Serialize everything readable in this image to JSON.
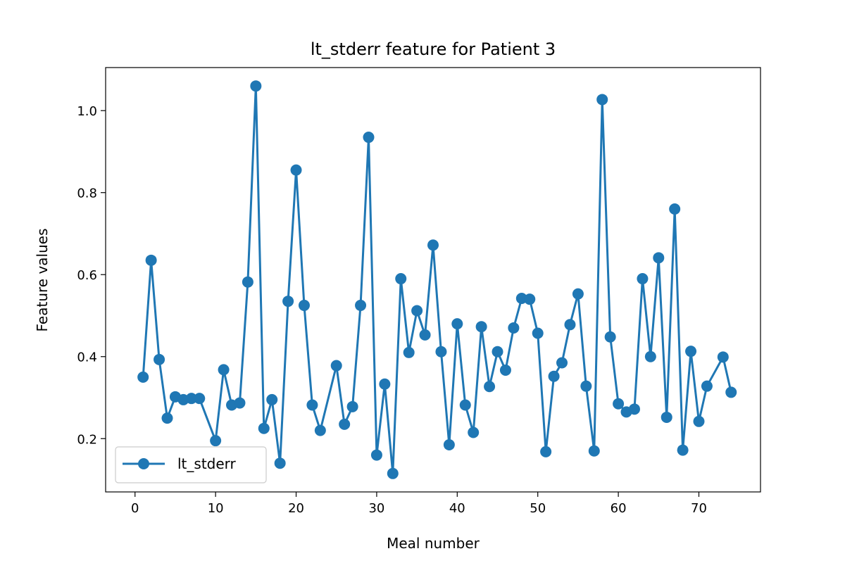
{
  "chart_data": {
    "type": "line",
    "title": "lt_stderr feature for Patient 3",
    "xlabel": "Meal number",
    "ylabel": "Feature values",
    "xlim": [
      -3.65,
      77.65
    ],
    "ylim": [
      0.07,
      1.105
    ],
    "xticks": [
      0,
      10,
      20,
      30,
      40,
      50,
      60,
      70
    ],
    "yticks": [
      0.2,
      0.4,
      0.6,
      0.8,
      1.0
    ],
    "xtick_labels": [
      "0",
      "10",
      "20",
      "30",
      "40",
      "50",
      "60",
      "70"
    ],
    "ytick_labels": [
      "0.2",
      "0.4",
      "0.6",
      "0.8",
      "1.0"
    ],
    "grid": false,
    "legend_position": "lower-left",
    "series": [
      {
        "name": "lt_stderr",
        "color": "#1f77b4",
        "marker": "circle",
        "x": [
          1,
          2,
          3,
          4,
          5,
          6,
          7,
          8,
          10,
          11,
          12,
          13,
          14,
          15,
          16,
          17,
          18,
          19,
          20,
          21,
          22,
          23,
          25,
          26,
          27,
          28,
          29,
          30,
          31,
          32,
          33,
          34,
          35,
          36,
          37,
          38,
          39,
          40,
          41,
          42,
          43,
          44,
          45,
          46,
          47,
          48,
          49,
          50,
          51,
          52,
          53,
          54,
          55,
          56,
          57,
          58,
          59,
          60,
          61,
          62,
          63,
          64,
          65,
          66,
          67,
          68,
          69,
          70,
          71,
          73,
          74
        ],
        "values": [
          0.35,
          0.635,
          0.393,
          0.25,
          0.302,
          0.295,
          0.298,
          0.298,
          0.195,
          0.368,
          0.282,
          0.287,
          0.582,
          1.06,
          0.225,
          0.295,
          0.14,
          0.535,
          0.855,
          0.525,
          0.282,
          0.22,
          0.378,
          0.235,
          0.278,
          0.525,
          0.935,
          0.16,
          0.333,
          0.115,
          0.59,
          0.41,
          0.512,
          0.453,
          0.672,
          0.412,
          0.185,
          0.48,
          0.282,
          0.215,
          0.473,
          0.327,
          0.412,
          0.367,
          0.47,
          0.542,
          0.54,
          0.457,
          0.168,
          0.352,
          0.385,
          0.478,
          0.553,
          0.328,
          0.17,
          1.027,
          0.448,
          0.285,
          0.265,
          0.272,
          0.59,
          0.4,
          0.641,
          0.252,
          0.76,
          0.172,
          0.413,
          0.242,
          0.328,
          0.399,
          0.313
        ]
      }
    ]
  }
}
